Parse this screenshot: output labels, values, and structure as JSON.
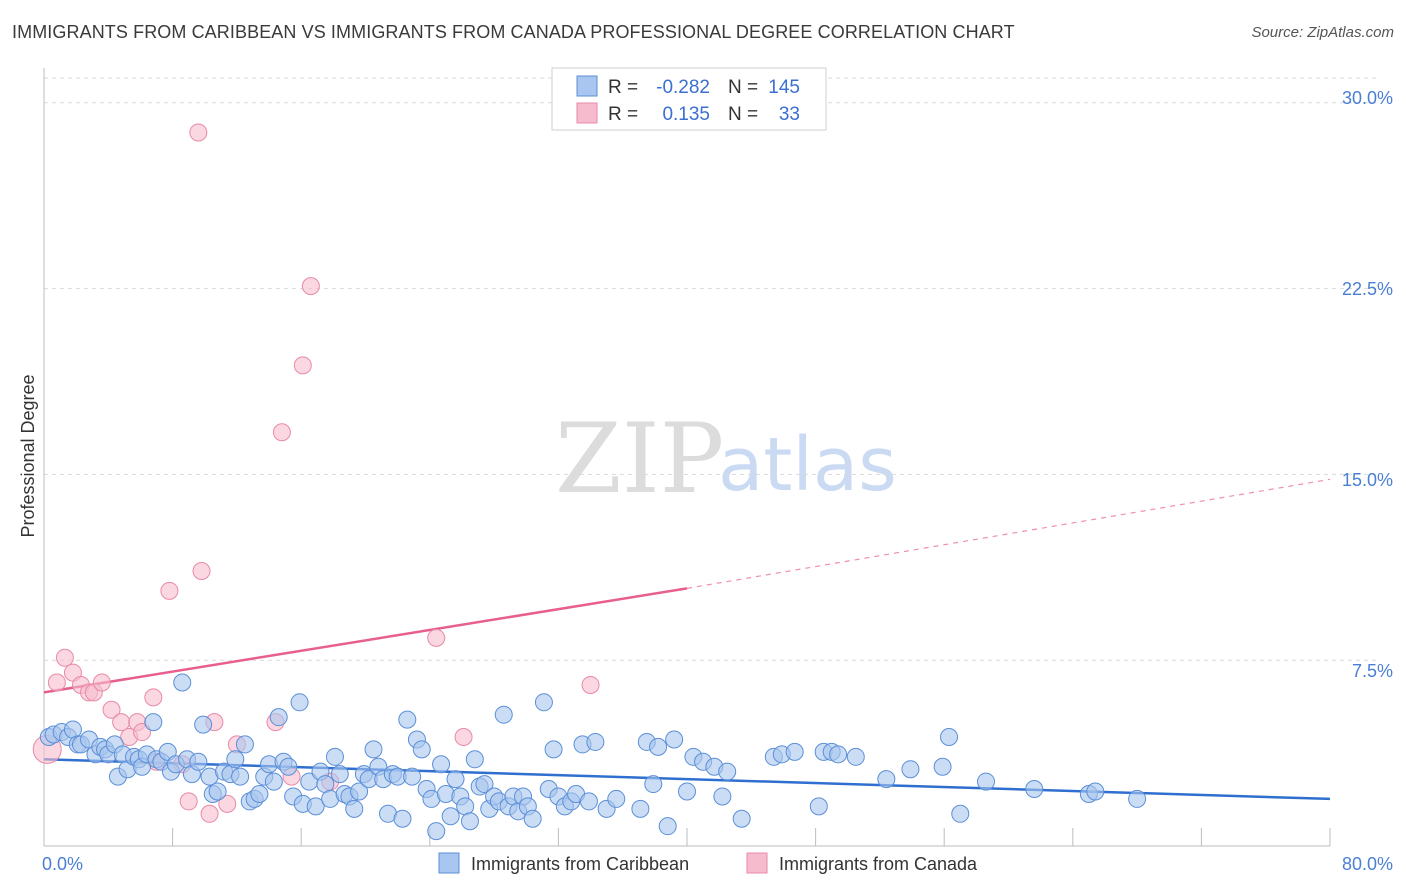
{
  "title": "IMMIGRANTS FROM CARIBBEAN VS IMMIGRANTS FROM CANADA PROFESSIONAL DEGREE CORRELATION CHART",
  "source": "Source: ZipAtlas.com",
  "watermark": {
    "zip": "ZIP",
    "atlas": "atlas"
  },
  "colors": {
    "blue_fill": "#a8c6ef",
    "blue_stroke": "#5b8fd8",
    "blue_line": "#2f6fcf",
    "pink_fill": "#f6bccd",
    "pink_stroke": "#e98aa8",
    "pink_line": "#e85f8d",
    "grid": "#d9d9d9",
    "axis_text": "#4a7fd4"
  },
  "legend": {
    "rows": [
      {
        "r_label": "R =",
        "r_value": "-0.282",
        "n_label": "N =",
        "n_value": "145",
        "series": "blue"
      },
      {
        "r_label": "R =",
        "r_value": "0.135",
        "n_label": "N =",
        "n_value": "33",
        "series": "pink"
      }
    ]
  },
  "chart_data": {
    "type": "scatter",
    "title": "IMMIGRANTS FROM CARIBBEAN VS IMMIGRANTS FROM CANADA PROFESSIONAL DEGREE CORRELATION CHART",
    "xlabel": "",
    "ylabel": "Professional Degree",
    "xlim": [
      0,
      80
    ],
    "ylim": [
      0,
      31
    ],
    "x_tick_labels": [
      "0.0%",
      "80.0%"
    ],
    "y_ticks": [
      7.5,
      15.0,
      22.5,
      30.0
    ],
    "y_tick_labels": [
      "7.5%",
      "15.0%",
      "22.5%",
      "30.0%"
    ],
    "grid": true,
    "legend_position": "top-center",
    "series": [
      {
        "name": "Immigrants from Caribbean",
        "color": "blue",
        "r": -0.282,
        "n": 145,
        "trend": {
          "x0": 0,
          "y0": 3.5,
          "x1": 80,
          "y1": 1.9
        },
        "points": [
          [
            0.3,
            4.4
          ],
          [
            0.6,
            4.5
          ],
          [
            1.1,
            4.6
          ],
          [
            1.5,
            4.4
          ],
          [
            1.8,
            4.7
          ],
          [
            2.1,
            4.1
          ],
          [
            2.3,
            4.1
          ],
          [
            2.8,
            4.3
          ],
          [
            3.2,
            3.7
          ],
          [
            3.5,
            4.0
          ],
          [
            3.8,
            3.9
          ],
          [
            4.0,
            3.7
          ],
          [
            4.4,
            4.1
          ],
          [
            4.6,
            2.8
          ],
          [
            4.9,
            3.7
          ],
          [
            5.2,
            3.1
          ],
          [
            5.6,
            3.6
          ],
          [
            5.9,
            3.5
          ],
          [
            6.1,
            3.2
          ],
          [
            6.4,
            3.7
          ],
          [
            6.8,
            5.0
          ],
          [
            7.0,
            3.5
          ],
          [
            7.3,
            3.4
          ],
          [
            7.7,
            3.8
          ],
          [
            7.9,
            3.0
          ],
          [
            8.2,
            3.3
          ],
          [
            8.6,
            6.6
          ],
          [
            8.9,
            3.5
          ],
          [
            9.2,
            2.9
          ],
          [
            9.6,
            3.4
          ],
          [
            9.9,
            4.9
          ],
          [
            10.3,
            2.8
          ],
          [
            10.5,
            2.1
          ],
          [
            10.8,
            2.2
          ],
          [
            11.2,
            3.0
          ],
          [
            11.6,
            2.9
          ],
          [
            11.9,
            3.5
          ],
          [
            12.2,
            2.8
          ],
          [
            12.5,
            4.1
          ],
          [
            12.8,
            1.8
          ],
          [
            13.1,
            1.9
          ],
          [
            13.4,
            2.1
          ],
          [
            13.7,
            2.8
          ],
          [
            14.0,
            3.3
          ],
          [
            14.3,
            2.6
          ],
          [
            14.6,
            5.2
          ],
          [
            14.9,
            3.4
          ],
          [
            15.2,
            3.2
          ],
          [
            15.5,
            2.0
          ],
          [
            15.9,
            5.8
          ],
          [
            16.1,
            1.7
          ],
          [
            16.5,
            2.6
          ],
          [
            16.9,
            1.6
          ],
          [
            17.2,
            3.0
          ],
          [
            17.5,
            2.5
          ],
          [
            17.8,
            1.9
          ],
          [
            18.1,
            3.6
          ],
          [
            18.4,
            2.9
          ],
          [
            18.7,
            2.1
          ],
          [
            19.0,
            2.0
          ],
          [
            19.3,
            1.5
          ],
          [
            19.6,
            2.2
          ],
          [
            19.9,
            2.9
          ],
          [
            20.2,
            2.7
          ],
          [
            20.5,
            3.9
          ],
          [
            20.8,
            3.2
          ],
          [
            21.1,
            2.7
          ],
          [
            21.4,
            1.3
          ],
          [
            21.7,
            2.9
          ],
          [
            22.0,
            2.8
          ],
          [
            22.3,
            1.1
          ],
          [
            22.6,
            5.1
          ],
          [
            22.9,
            2.8
          ],
          [
            23.2,
            4.3
          ],
          [
            23.5,
            3.9
          ],
          [
            23.8,
            2.3
          ],
          [
            24.1,
            1.9
          ],
          [
            24.4,
            0.6
          ],
          [
            24.7,
            3.3
          ],
          [
            25.0,
            2.1
          ],
          [
            25.3,
            1.2
          ],
          [
            25.6,
            2.7
          ],
          [
            25.9,
            2.0
          ],
          [
            26.2,
            1.6
          ],
          [
            26.5,
            1.0
          ],
          [
            26.8,
            3.5
          ],
          [
            27.1,
            2.4
          ],
          [
            27.4,
            2.5
          ],
          [
            27.7,
            1.5
          ],
          [
            28.0,
            2.0
          ],
          [
            28.3,
            1.8
          ],
          [
            28.6,
            5.3
          ],
          [
            28.9,
            1.6
          ],
          [
            29.2,
            2.0
          ],
          [
            29.5,
            1.4
          ],
          [
            29.8,
            2.0
          ],
          [
            30.1,
            1.6
          ],
          [
            30.4,
            1.1
          ],
          [
            31.1,
            5.8
          ],
          [
            31.4,
            2.3
          ],
          [
            31.7,
            3.9
          ],
          [
            32.0,
            2.0
          ],
          [
            32.4,
            1.6
          ],
          [
            32.8,
            1.8
          ],
          [
            33.1,
            2.1
          ],
          [
            33.5,
            4.1
          ],
          [
            33.9,
            1.8
          ],
          [
            34.3,
            4.2
          ],
          [
            35.0,
            1.5
          ],
          [
            35.6,
            1.9
          ],
          [
            37.1,
            1.5
          ],
          [
            37.5,
            4.2
          ],
          [
            37.9,
            2.5
          ],
          [
            38.2,
            4.0
          ],
          [
            38.8,
            0.8
          ],
          [
            39.2,
            4.3
          ],
          [
            40.0,
            2.2
          ],
          [
            40.4,
            3.6
          ],
          [
            41.0,
            3.4
          ],
          [
            41.7,
            3.2
          ],
          [
            42.2,
            2.0
          ],
          [
            42.5,
            3.0
          ],
          [
            43.4,
            1.1
          ],
          [
            45.4,
            3.6
          ],
          [
            45.9,
            3.7
          ],
          [
            46.7,
            3.8
          ],
          [
            48.2,
            1.6
          ],
          [
            48.5,
            3.8
          ],
          [
            49.0,
            3.8
          ],
          [
            49.4,
            3.7
          ],
          [
            50.5,
            3.6
          ],
          [
            52.4,
            2.7
          ],
          [
            53.9,
            3.1
          ],
          [
            55.9,
            3.2
          ],
          [
            56.3,
            4.4
          ],
          [
            57.0,
            1.3
          ],
          [
            58.6,
            2.6
          ],
          [
            61.6,
            2.3
          ],
          [
            65.0,
            2.1
          ],
          [
            65.4,
            2.2
          ],
          [
            68.0,
            1.9
          ]
        ]
      },
      {
        "name": "Immigrants from Canada",
        "color": "pink",
        "r": 0.135,
        "n": 33,
        "trend": {
          "x0": 0,
          "y0": 6.2,
          "x1": 40,
          "y1": 10.4,
          "dashed_to": {
            "x": 80,
            "y": 14.8
          }
        },
        "points": [
          [
            0.2,
            3.9
          ],
          [
            0.8,
            6.6
          ],
          [
            1.3,
            7.6
          ],
          [
            1.8,
            7.0
          ],
          [
            2.3,
            6.5
          ],
          [
            2.8,
            6.2
          ],
          [
            3.1,
            6.2
          ],
          [
            3.6,
            6.6
          ],
          [
            4.2,
            5.5
          ],
          [
            4.8,
            5.0
          ],
          [
            5.3,
            4.4
          ],
          [
            5.8,
            5.0
          ],
          [
            6.1,
            4.6
          ],
          [
            6.8,
            6.0
          ],
          [
            7.0,
            3.4
          ],
          [
            7.8,
            10.3
          ],
          [
            8.6,
            3.3
          ],
          [
            9.0,
            1.8
          ],
          [
            9.6,
            28.8
          ],
          [
            9.8,
            11.1
          ],
          [
            10.3,
            1.3
          ],
          [
            10.6,
            5.0
          ],
          [
            11.4,
            1.7
          ],
          [
            12.0,
            4.1
          ],
          [
            14.4,
            5.0
          ],
          [
            14.8,
            16.7
          ],
          [
            15.4,
            2.8
          ],
          [
            16.1,
            19.4
          ],
          [
            16.6,
            22.6
          ],
          [
            17.8,
            2.6
          ],
          [
            24.4,
            8.4
          ],
          [
            26.1,
            4.4
          ],
          [
            34.0,
            6.5
          ]
        ]
      }
    ]
  },
  "bottom_legend": [
    {
      "label": "Immigrants from Caribbean",
      "series": "blue"
    },
    {
      "label": "Immigrants from Canada",
      "series": "pink"
    }
  ]
}
